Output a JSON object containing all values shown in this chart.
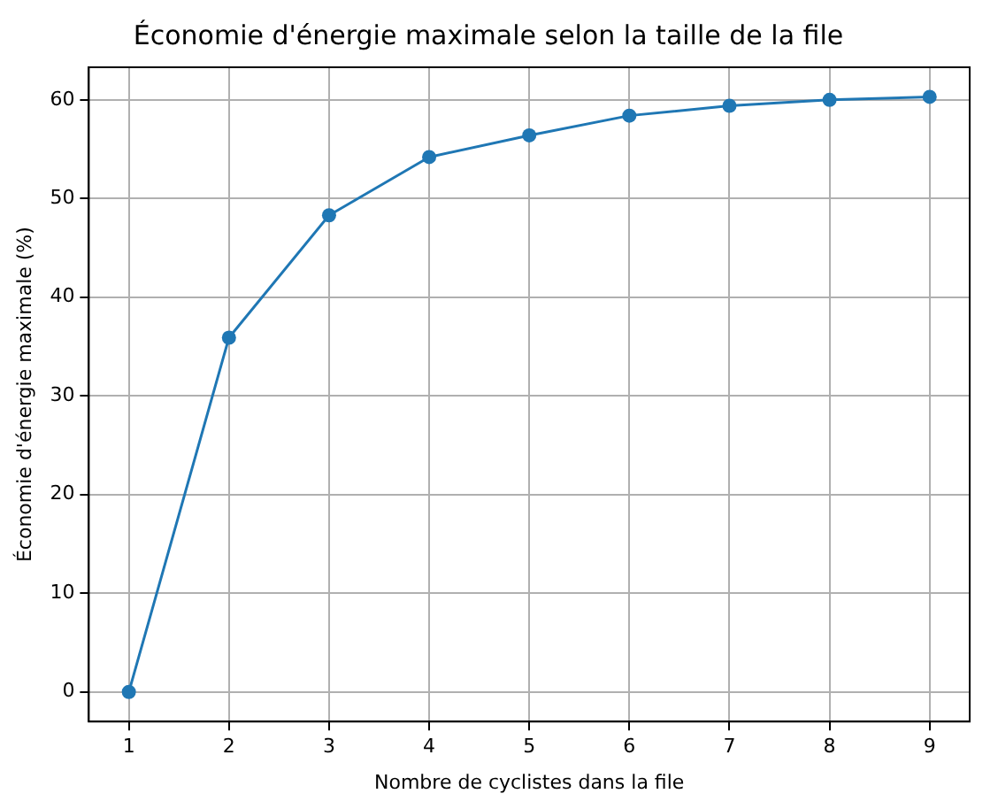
{
  "chart_data": {
    "type": "line",
    "title": "Économie d'énergie maximale selon la taille de la file",
    "xlabel": "Nombre de cyclistes dans la file",
    "ylabel": "Économie d'énergie maximale (%)",
    "x": [
      1,
      2,
      3,
      4,
      5,
      6,
      7,
      8,
      9
    ],
    "series": [
      {
        "color": "#1f77b4",
        "values": [
          0,
          35.9,
          48.3,
          54.2,
          56.4,
          58.4,
          59.4,
          60.0,
          60.3
        ]
      }
    ],
    "xlim": [
      0.6,
      9.4
    ],
    "xticks": [
      1,
      2,
      3,
      4,
      5,
      6,
      7,
      8,
      9
    ],
    "ylim": [
      -3.0,
      63.3
    ],
    "yticks": [
      0,
      10,
      20,
      30,
      40,
      50,
      60
    ],
    "grid": true,
    "marker": "circle",
    "line_style": "solid"
  }
}
